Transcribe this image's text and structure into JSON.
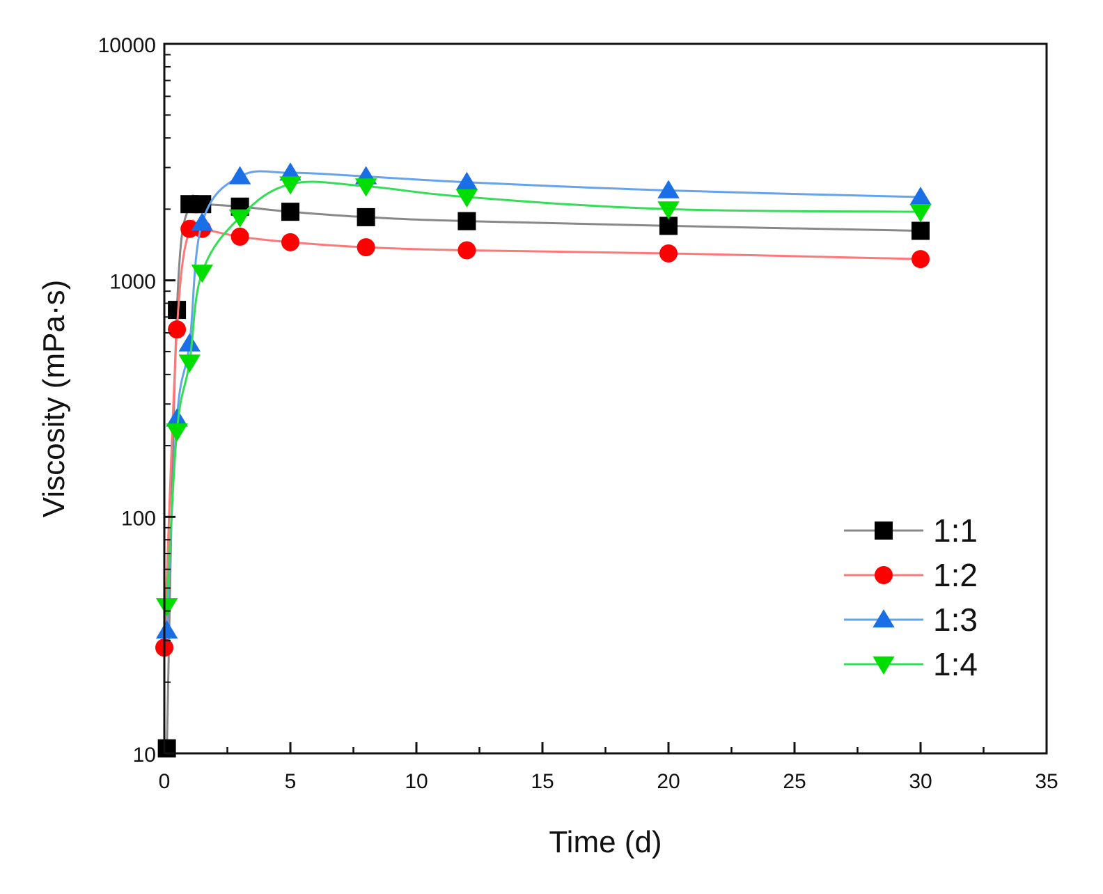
{
  "chart_data": {
    "type": "line",
    "title": "",
    "xlabel": "Time (d)",
    "ylabel": "Viscosity (mPa·s)",
    "xlim": [
      0,
      35
    ],
    "ylim": [
      10,
      10000
    ],
    "yscale": "log",
    "xticks": [
      "0",
      "5",
      "10",
      "15",
      "20",
      "25",
      "30",
      "35"
    ],
    "yticks": [
      "10",
      "100",
      "1000",
      "10000"
    ],
    "grid": false,
    "legend_position": "lower-right",
    "x": [
      0.1,
      0.5,
      1,
      1.5,
      3,
      5,
      8,
      12,
      20,
      30
    ],
    "series": [
      {
        "name": "1:1",
        "color": "#000000",
        "line_color": "#888888",
        "marker": "square",
        "x": [
          0.1,
          0.5,
          1,
          1.5,
          3,
          5,
          8,
          12,
          20,
          30
        ],
        "values": [
          10.5,
          750,
          2100,
          2100,
          2050,
          1950,
          1850,
          1780,
          1700,
          1620
        ]
      },
      {
        "name": "1:2",
        "color": "#ff0000",
        "line_color": "#ff7777",
        "marker": "circle",
        "x": [
          0,
          0.5,
          1,
          1.5,
          3,
          5,
          8,
          12,
          20,
          30
        ],
        "values": [
          28,
          620,
          1650,
          1650,
          1530,
          1450,
          1380,
          1340,
          1300,
          1230
        ]
      },
      {
        "name": "1:3",
        "color": "#1a6ee6",
        "line_color": "#66a3ee",
        "marker": "triangle-up",
        "x": [
          0.1,
          0.5,
          1,
          1.5,
          3,
          5,
          8,
          12,
          20,
          30
        ],
        "values": [
          33,
          260,
          540,
          1750,
          2750,
          2850,
          2750,
          2600,
          2400,
          2250
        ]
      },
      {
        "name": "1:4",
        "color": "#00dd00",
        "line_color": "#33dd55",
        "marker": "triangle-down",
        "x": [
          0.1,
          0.5,
          1,
          1.5,
          3,
          5,
          8,
          12,
          20,
          30
        ],
        "values": [
          42,
          230,
          450,
          1080,
          1850,
          2550,
          2500,
          2250,
          2000,
          1950
        ]
      }
    ]
  }
}
